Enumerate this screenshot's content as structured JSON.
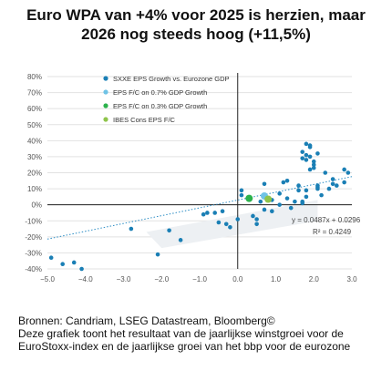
{
  "title_line1": "Euro WPA van +4% voor 2025 is herzien, maar",
  "title_line2": "2026 nog steeds hoog (+11,5%)",
  "footer": {
    "line1": "Bronnen: Candriam, LSEG Datastream, Bloomberg©",
    "line2": "Deze grafiek toont het resultaat van de jaarlijkse winstgroei voor de",
    "line3": "EuroStoxx-index en de jaarlijkse groei van het bbp voor de eurozone"
  },
  "colors": {
    "historical": "#1a7fb5",
    "fc07": "#6fc3e6",
    "fc03": "#2bb24c",
    "ibes": "#8fc44b",
    "trend": "#2a8cc4",
    "shade": "#edf0f3",
    "axis": "#222222",
    "grid": "#e2e2e2",
    "tick_text": "#555555"
  },
  "chart_data": {
    "type": "scatter",
    "title": "Euro WPA van +4% voor 2025 is herzien, maar 2026 nog steeds hoog (+11,5%)",
    "xlabel": "",
    "ylabel": "",
    "xlim": [
      -5.0,
      3.0
    ],
    "ylim": [
      -0.4,
      0.8
    ],
    "x_ticks": [
      -5.0,
      -4.0,
      -3.0,
      -2.0,
      -1.0,
      0.0,
      1.0,
      2.0,
      3.0
    ],
    "x_tick_labels": [
      "−5.0",
      "−4.0",
      "−3.0",
      "−2.0",
      "−1.0",
      "0.0",
      "1.0",
      "2.0",
      "3.0"
    ],
    "y_ticks": [
      -0.4,
      -0.3,
      -0.2,
      -0.1,
      0.0,
      0.1,
      0.2,
      0.3,
      0.4,
      0.5,
      0.6,
      0.7,
      0.8
    ],
    "y_tick_labels": [
      "-40%",
      "-30%",
      "-20%",
      "-10%",
      "0%",
      "10%",
      "20%",
      "30%",
      "40%",
      "50%",
      "60%",
      "70%",
      "80%"
    ],
    "grid": "horizontal",
    "legend_position": "top-left",
    "series": [
      {
        "name": "SXXE EPS Growth vs. Eurozone GDP",
        "color_key": "historical",
        "points": [
          {
            "x": -4.9,
            "y": -0.33
          },
          {
            "x": -4.6,
            "y": -0.37
          },
          {
            "x": -4.3,
            "y": -0.36
          },
          {
            "x": -4.1,
            "y": -0.4
          },
          {
            "x": -2.8,
            "y": -0.15
          },
          {
            "x": -2.1,
            "y": -0.31
          },
          {
            "x": -1.8,
            "y": -0.16
          },
          {
            "x": -1.5,
            "y": -0.22
          },
          {
            "x": -0.9,
            "y": -0.06
          },
          {
            "x": -0.8,
            "y": -0.05
          },
          {
            "x": -0.6,
            "y": -0.05
          },
          {
            "x": -0.5,
            "y": -0.11
          },
          {
            "x": -0.4,
            "y": -0.04
          },
          {
            "x": -0.3,
            "y": -0.12
          },
          {
            "x": -0.2,
            "y": -0.14
          },
          {
            "x": 0.0,
            "y": -0.09
          },
          {
            "x": 0.1,
            "y": 0.09
          },
          {
            "x": 0.1,
            "y": 0.06
          },
          {
            "x": 0.4,
            "y": -0.07
          },
          {
            "x": 0.5,
            "y": -0.09
          },
          {
            "x": 0.5,
            "y": -0.12
          },
          {
            "x": 0.6,
            "y": 0.02
          },
          {
            "x": 0.7,
            "y": 0.13
          },
          {
            "x": 0.7,
            "y": -0.03
          },
          {
            "x": 0.9,
            "y": 0.03
          },
          {
            "x": 0.9,
            "y": -0.04
          },
          {
            "x": 1.1,
            "y": 0.0
          },
          {
            "x": 1.1,
            "y": 0.07
          },
          {
            "x": 1.2,
            "y": 0.14
          },
          {
            "x": 1.3,
            "y": 0.04
          },
          {
            "x": 1.3,
            "y": 0.15
          },
          {
            "x": 1.4,
            "y": -0.02
          },
          {
            "x": 1.5,
            "y": 0.02
          },
          {
            "x": 1.6,
            "y": 0.09
          },
          {
            "x": 1.6,
            "y": 0.12
          },
          {
            "x": 1.7,
            "y": 0.01
          },
          {
            "x": 1.7,
            "y": 0.02
          },
          {
            "x": 1.7,
            "y": 0.29
          },
          {
            "x": 1.7,
            "y": 0.33
          },
          {
            "x": 1.8,
            "y": 0.05
          },
          {
            "x": 1.8,
            "y": 0.09
          },
          {
            "x": 1.8,
            "y": 0.28
          },
          {
            "x": 1.8,
            "y": 0.31
          },
          {
            "x": 1.8,
            "y": 0.38
          },
          {
            "x": 1.9,
            "y": 0.3
          },
          {
            "x": 1.9,
            "y": 0.36
          },
          {
            "x": 1.9,
            "y": 0.37
          },
          {
            "x": 1.9,
            "y": 0.22
          },
          {
            "x": 2.0,
            "y": 0.23
          },
          {
            "x": 2.0,
            "y": 0.25
          },
          {
            "x": 2.0,
            "y": 0.27
          },
          {
            "x": 2.1,
            "y": 0.11
          },
          {
            "x": 2.1,
            "y": 0.12
          },
          {
            "x": 2.1,
            "y": 0.32
          },
          {
            "x": 2.2,
            "y": 0.06
          },
          {
            "x": 2.3,
            "y": 0.2
          },
          {
            "x": 2.5,
            "y": 0.13
          },
          {
            "x": 2.5,
            "y": 0.16
          },
          {
            "x": 2.6,
            "y": 0.12
          },
          {
            "x": 2.8,
            "y": 0.14
          },
          {
            "x": 2.8,
            "y": 0.22
          },
          {
            "x": 2.9,
            "y": 0.2
          },
          {
            "x": 2.1,
            "y": 0.1
          },
          {
            "x": 2.4,
            "y": 0.1
          }
        ]
      },
      {
        "name": "EPS F/C on 0.7% GDP Growth",
        "color_key": "fc07",
        "points": [
          {
            "x": 0.7,
            "y": 0.055
          }
        ]
      },
      {
        "name": "EPS F/C on 0.3% GDP Growth",
        "color_key": "fc03",
        "points": [
          {
            "x": 0.3,
            "y": 0.04
          }
        ]
      },
      {
        "name": "IBES Cons EPS F/C",
        "color_key": "ibes",
        "points": [
          {
            "x": 0.8,
            "y": 0.035
          }
        ]
      }
    ],
    "trendline": {
      "equation": "y = 0.0487x + 0.0296",
      "r_squared": "R² = 0.4249",
      "slope": 0.0487,
      "intercept": 0.0296,
      "x_from": -5.0,
      "x_to": 3.0
    },
    "shaded_region": {
      "comment": "grey band around the forecast scenarios",
      "corners": [
        {
          "x": -2.4,
          "y": -0.17
        },
        {
          "x": 2.1,
          "y": 0.03
        },
        {
          "x": 2.1,
          "y": -0.1
        },
        {
          "x": -2.0,
          "y": -0.27
        }
      ]
    }
  }
}
